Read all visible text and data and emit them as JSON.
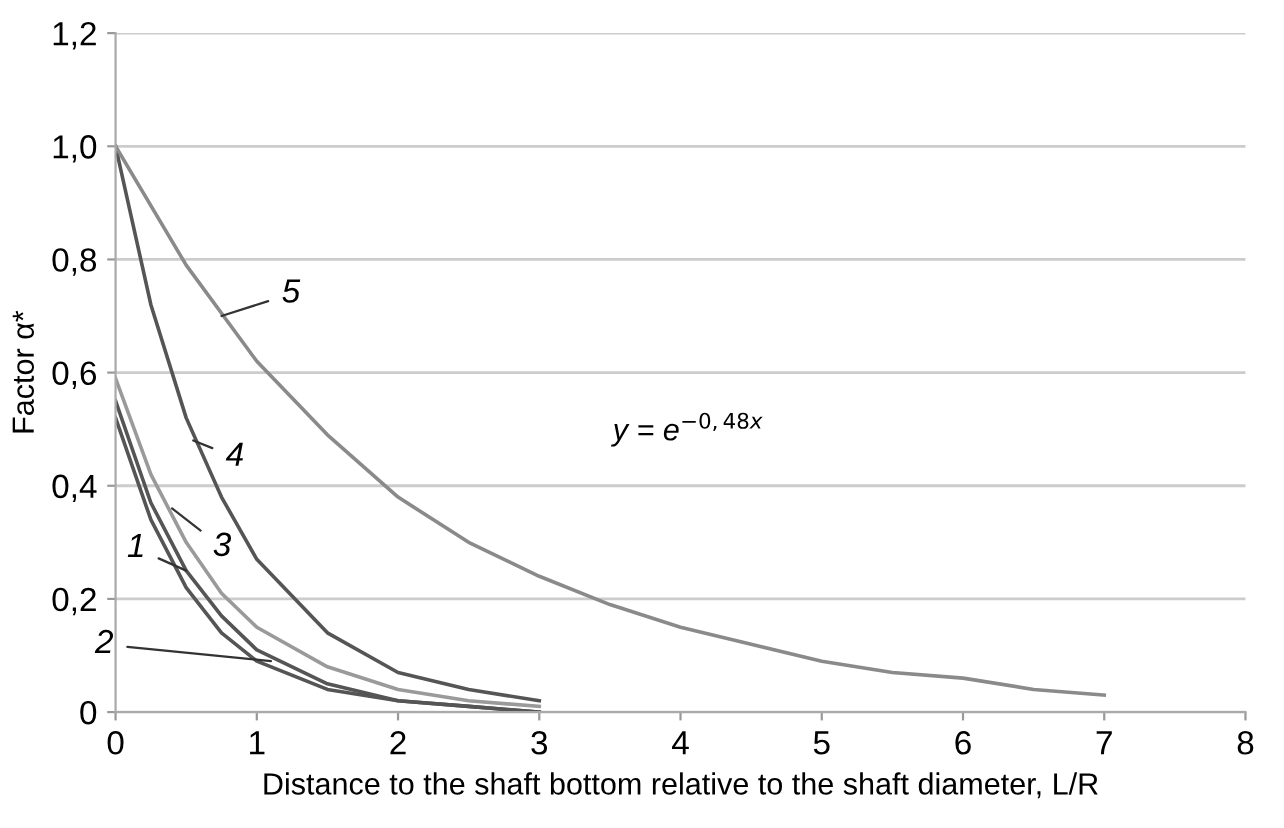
{
  "chart_data": {
    "type": "line",
    "xlabel": "Distance to the shaft bottom relative to the shaft diameter, L/R",
    "ylabel": "Factor α*",
    "series": [
      {
        "color": "#555555",
        "x": [
          0,
          0.25,
          0.5,
          0.75,
          1,
          1.5,
          2,
          2.5,
          3
        ],
        "values": [
          0.55,
          0.37,
          0.25,
          0.17,
          0.11,
          0.05,
          0.02,
          0.01,
          0.0
        ]
      },
      {
        "color": "#555555",
        "x": [
          0,
          0.25,
          0.5,
          0.75,
          1,
          1.5,
          2,
          2.5,
          3
        ],
        "values": [
          0.52,
          0.34,
          0.22,
          0.14,
          0.09,
          0.04,
          0.02,
          0.01,
          0.0
        ]
      },
      {
        "color": "#9a9a9a",
        "x": [
          0,
          0.25,
          0.5,
          0.75,
          1,
          1.5,
          2,
          2.5,
          3
        ],
        "values": [
          0.59,
          0.42,
          0.3,
          0.21,
          0.15,
          0.08,
          0.04,
          0.02,
          0.01
        ]
      },
      {
        "color": "#555555",
        "x": [
          0,
          0.25,
          0.5,
          0.75,
          1,
          1.5,
          2,
          2.5,
          3
        ],
        "values": [
          1.0,
          0.72,
          0.52,
          0.38,
          0.27,
          0.14,
          0.07,
          0.04,
          0.02
        ]
      },
      {
        "color": "#8a8a8a",
        "x": [
          0,
          0.5,
          1,
          1.5,
          2,
          2.5,
          3,
          3.5,
          4,
          4.5,
          5,
          5.5,
          6,
          6.5,
          7
        ],
        "values": [
          1.0,
          0.79,
          0.62,
          0.49,
          0.38,
          0.3,
          0.24,
          0.19,
          0.15,
          0.12,
          0.09,
          0.07,
          0.06,
          0.04,
          0.03
        ]
      }
    ],
    "annotations": [
      {
        "text": "1",
        "x": 0.5,
        "y": 0.25
      },
      {
        "text": "2",
        "x": 1.1,
        "y": 0.09
      },
      {
        "text": "3",
        "x": 0.4,
        "y": 0.36
      },
      {
        "text": "4",
        "x": 0.55,
        "y": 0.48
      },
      {
        "text": "5",
        "x": 0.75,
        "y": 0.7
      },
      "y = e$^{−0,48x}$"
    ],
    "xlim": [
      0,
      8
    ],
    "xticks": [
      0,
      1,
      2,
      3,
      4,
      5,
      6,
      7,
      8
    ],
    "ylim": [
      0,
      1.2
    ],
    "yticks": [
      0,
      {
        "value": 0.2,
        "label": "0,2"
      },
      {
        "value": 0.4,
        "label": "0,4"
      },
      {
        "value": 0.6,
        "label": "0,6"
      },
      {
        "value": 0.8,
        "label": "0,8"
      },
      {
        "value": 1.0,
        "label": "1,0"
      },
      {
        "value": 1.2,
        "label": "1,2"
      }
    ],
    "grid": "y",
    "legend": false,
    "marker": "none",
    "line_style": "solid"
  }
}
